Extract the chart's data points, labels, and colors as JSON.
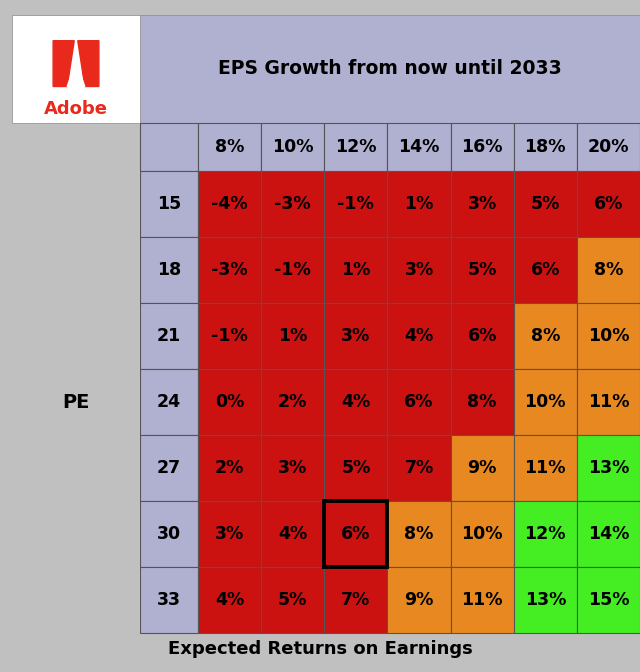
{
  "title_top": "EPS Growth from now until 2033",
  "title_bottom": "Expected Returns on Earnings",
  "pe_label": "PE",
  "pe_values": [
    15,
    18,
    21,
    24,
    27,
    30,
    33
  ],
  "eps_values": [
    "8%",
    "10%",
    "12%",
    "14%",
    "16%",
    "18%",
    "20%"
  ],
  "matrix": [
    [
      "-4%",
      "-3%",
      "-1%",
      "1%",
      "3%",
      "5%",
      "6%"
    ],
    [
      "-3%",
      "-1%",
      "1%",
      "3%",
      "5%",
      "6%",
      "8%"
    ],
    [
      "-1%",
      "1%",
      "3%",
      "4%",
      "6%",
      "8%",
      "10%"
    ],
    [
      "0%",
      "2%",
      "4%",
      "6%",
      "8%",
      "10%",
      "11%"
    ],
    [
      "2%",
      "3%",
      "5%",
      "7%",
      "9%",
      "11%",
      "13%"
    ],
    [
      "3%",
      "4%",
      "6%",
      "8%",
      "10%",
      "12%",
      "14%"
    ],
    [
      "4%",
      "5%",
      "7%",
      "9%",
      "11%",
      "13%",
      "15%"
    ]
  ],
  "cell_colors": [
    [
      "#cc1111",
      "#cc1111",
      "#cc1111",
      "#cc1111",
      "#cc1111",
      "#cc1111",
      "#cc1111"
    ],
    [
      "#cc1111",
      "#cc1111",
      "#cc1111",
      "#cc1111",
      "#cc1111",
      "#cc1111",
      "#e88820"
    ],
    [
      "#cc1111",
      "#cc1111",
      "#cc1111",
      "#cc1111",
      "#cc1111",
      "#e88820",
      "#e88820"
    ],
    [
      "#cc1111",
      "#cc1111",
      "#cc1111",
      "#cc1111",
      "#cc1111",
      "#e88820",
      "#e88820"
    ],
    [
      "#cc1111",
      "#cc1111",
      "#cc1111",
      "#cc1111",
      "#e88820",
      "#e88820",
      "#44ee22"
    ],
    [
      "#cc1111",
      "#cc1111",
      "#cc1111",
      "#e88820",
      "#e88820",
      "#44ee22",
      "#44ee22"
    ],
    [
      "#cc1111",
      "#cc1111",
      "#cc1111",
      "#e88820",
      "#e88820",
      "#44ee22",
      "#44ee22"
    ]
  ],
  "header_bg": "#b0b0d0",
  "pe_col_bg": "#b0b0d0",
  "outer_bg": "#c0c0c0",
  "white_bg": "#ffffff",
  "adobe_red": "#e8291c",
  "highlight_cell_row": 5,
  "highlight_cell_col": 2,
  "fig_width": 6.4,
  "fig_height": 6.72,
  "dpi": 100
}
